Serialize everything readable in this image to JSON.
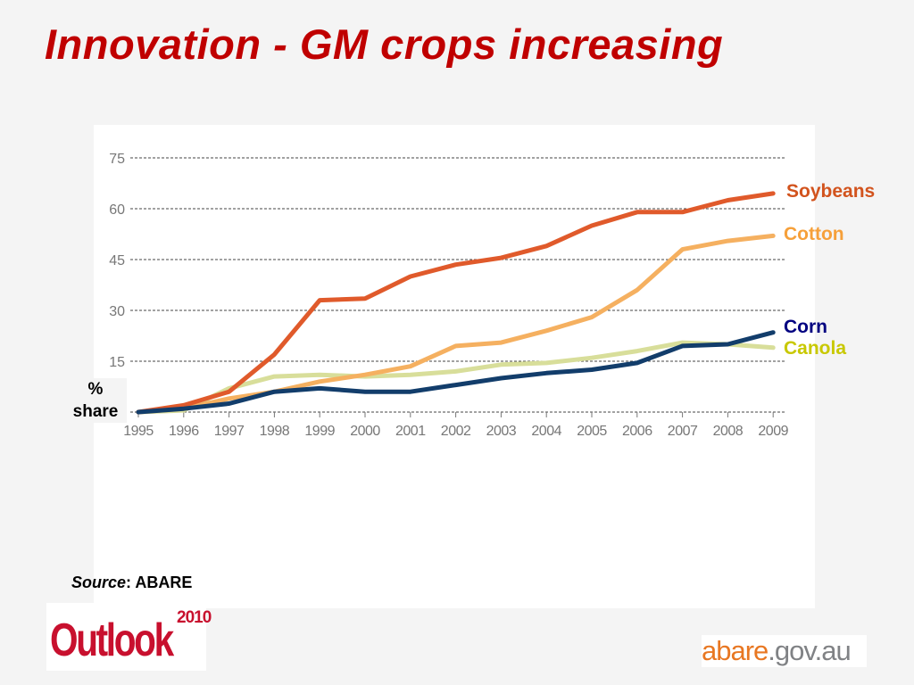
{
  "slide": {
    "title": "Innovation - GM crops increasing",
    "ylabel_line1": "%",
    "ylabel_line2": "share",
    "source_label": "Source",
    "source_value": ": ABARE",
    "logo_outlook_word": "Outlook",
    "logo_outlook_year": "2010",
    "logo_abare_main": "abare",
    "logo_abare_suffix": ".gov.au"
  },
  "chart_data": {
    "type": "line",
    "x": [
      "1995",
      "1996",
      "1997",
      "1998",
      "1999",
      "2000",
      "2001",
      "2002",
      "2003",
      "2004",
      "2005",
      "2006",
      "2007",
      "2008",
      "2009"
    ],
    "yticks": [
      "75",
      "60",
      "45",
      "30",
      "15"
    ],
    "ylim": [
      0,
      75
    ],
    "grid": true,
    "series": [
      {
        "name": "Soybeans",
        "color": "#e05a2b",
        "values": [
          0,
          2,
          6,
          17,
          33,
          33.5,
          40,
          43.5,
          45.5,
          49,
          55,
          59,
          59,
          62.5,
          64.5
        ]
      },
      {
        "name": "Cotton",
        "color": "#f5b060",
        "values": [
          0,
          1,
          4,
          6,
          9,
          11,
          13.5,
          19.5,
          20.5,
          24,
          28,
          36,
          48,
          50.5,
          52
        ]
      },
      {
        "name": "Corn",
        "color": "#123d6b",
        "values": [
          0,
          1,
          2.5,
          6,
          7,
          6,
          6,
          8,
          10,
          11.5,
          12.5,
          14.5,
          19.5,
          20,
          23.5
        ]
      },
      {
        "name": "Canola",
        "color": "#d8de9a",
        "values": [
          0,
          0.5,
          7,
          10.5,
          11,
          10.5,
          11,
          12,
          14,
          14.5,
          16,
          18,
          20.5,
          20,
          19
        ]
      }
    ],
    "label_colors": {
      "Soybeans": "#d2531d",
      "Cotton": "#f6a03a",
      "Corn": "#000080",
      "Canola": "#c8c800"
    }
  }
}
